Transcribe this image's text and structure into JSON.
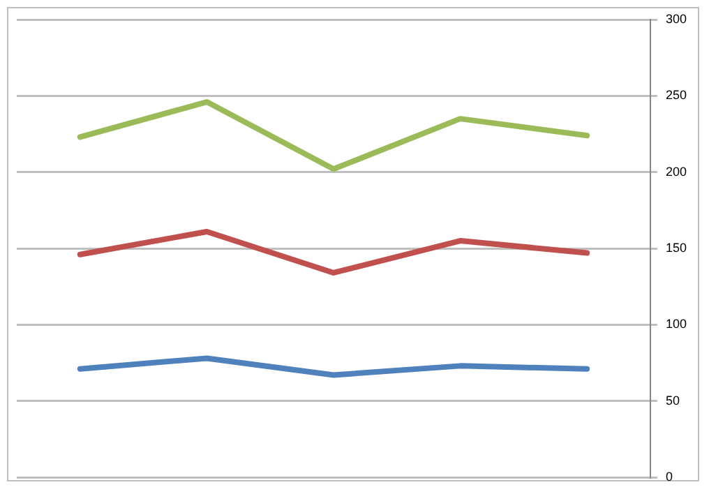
{
  "chart_data": {
    "type": "line",
    "categories": [
      null,
      null,
      null,
      null,
      null
    ],
    "series": [
      {
        "color": "#4f81bd",
        "values": [
          71,
          78,
          67,
          73,
          71
        ]
      },
      {
        "color": "#c0504d",
        "values": [
          146,
          161,
          134,
          155,
          147
        ]
      },
      {
        "color": "#9bbb59",
        "values": [
          223,
          246,
          202,
          235,
          224
        ]
      }
    ],
    "ylim": [
      0,
      300
    ],
    "yticks": [
      0,
      50,
      100,
      150,
      200,
      250,
      300
    ],
    "grid": "y",
    "legend": false,
    "marker": "none",
    "line_style": "solid",
    "tick_labels": "y"
  }
}
